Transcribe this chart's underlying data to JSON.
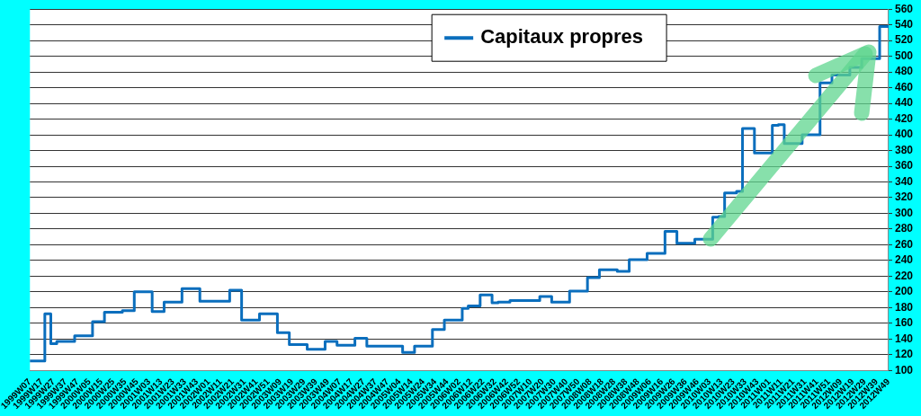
{
  "chart_data": {
    "type": "step",
    "categories": [
      "1999W07",
      null,
      "1999W17",
      null,
      "1999W27",
      null,
      "1999W37",
      null,
      "1999W47",
      null,
      "2000W05",
      null,
      "2000W15",
      null,
      "2000W25",
      null,
      "2000W35",
      null,
      "2000W45",
      null,
      "2001W03",
      null,
      "2001W13",
      null,
      "2001W23",
      null,
      "2001W33",
      null,
      "2001W43",
      null,
      "2002W01",
      null,
      "2002W11",
      null,
      "2002W21",
      null,
      "2002W31",
      null,
      "2002W41",
      null,
      "2002W51",
      null,
      "2003W09",
      null,
      "2003W19",
      null,
      "2003W29",
      null,
      "2003W39",
      null,
      "2003W49",
      null,
      "2004W07",
      null,
      "2004W17",
      null,
      "2004W27",
      null,
      "2004W37",
      null,
      "2004W47",
      null,
      "2005W04",
      null,
      "2005W14",
      null,
      "2005W24",
      null,
      "2005W34",
      null,
      "2005W44",
      null,
      "2006W02",
      null,
      "2006W12",
      null,
      "2006W22",
      null,
      "2006W32",
      null,
      "2006W42",
      null,
      "2006W52",
      null,
      "2007W10",
      null,
      "2007W20",
      null,
      "2007W30",
      null,
      "2007W40",
      null,
      "2007W50",
      null,
      "2008W08",
      null,
      "2008W18",
      null,
      "2008W28",
      null,
      "2008W38",
      null,
      "2008W48",
      null,
      "2009W06",
      null,
      "2009W16",
      null,
      "2009W26",
      null,
      "2009W36",
      null,
      "2009W46",
      null,
      "2010W03",
      null,
      "2010W13",
      null,
      "2010W23",
      null,
      "2010W33",
      null,
      "2010W43",
      null,
      "2011W01",
      null,
      "2011W11",
      null,
      "2011W21",
      null,
      "2011W31",
      null,
      "2011W41",
      null,
      "2011W51",
      null,
      "2012W09",
      null,
      "2012W19",
      null,
      "2012W29",
      null,
      "2012W39",
      null,
      "2012W49"
    ],
    "series": [
      {
        "name": "Capitaux propres",
        "color": "#0a6ebd",
        "values": [
          112,
          112,
          112,
          172,
          134,
          137,
          137,
          137,
          144,
          144,
          144,
          162,
          162,
          174,
          174,
          174,
          176,
          176,
          200,
          200,
          200,
          175,
          175,
          187,
          187,
          187,
          204,
          204,
          204,
          188,
          188,
          188,
          188,
          188,
          202,
          202,
          164,
          164,
          164,
          172,
          172,
          172,
          148,
          148,
          133,
          133,
          133,
          127,
          127,
          127,
          137,
          137,
          132,
          132,
          132,
          141,
          141,
          131,
          131,
          131,
          131,
          131,
          131,
          123,
          123,
          131,
          131,
          131,
          152,
          152,
          164,
          164,
          164,
          179,
          182,
          182,
          196,
          196,
          186,
          187,
          187,
          189,
          189,
          189,
          189,
          189,
          194,
          194,
          187,
          187,
          187,
          201,
          201,
          201,
          218,
          218,
          228,
          228,
          228,
          226,
          226,
          241,
          241,
          241,
          249,
          249,
          249,
          277,
          277,
          262,
          262,
          262,
          267,
          267,
          267,
          295,
          296,
          326,
          326,
          328,
          408,
          408,
          377,
          377,
          377,
          412,
          413,
          389,
          389,
          389,
          400,
          400,
          400,
          466,
          466,
          476,
          476,
          476,
          486,
          486,
          497,
          497,
          497,
          538,
          538
        ]
      }
    ],
    "ylim": [
      100,
      560
    ],
    "yticks": [
      100,
      120,
      140,
      160,
      180,
      200,
      220,
      240,
      260,
      280,
      300,
      320,
      340,
      360,
      380,
      400,
      420,
      440,
      460,
      480,
      500,
      520,
      540,
      560
    ],
    "grid": "y",
    "legend": "top",
    "marker": "none",
    "line_style": "solid"
  }
}
